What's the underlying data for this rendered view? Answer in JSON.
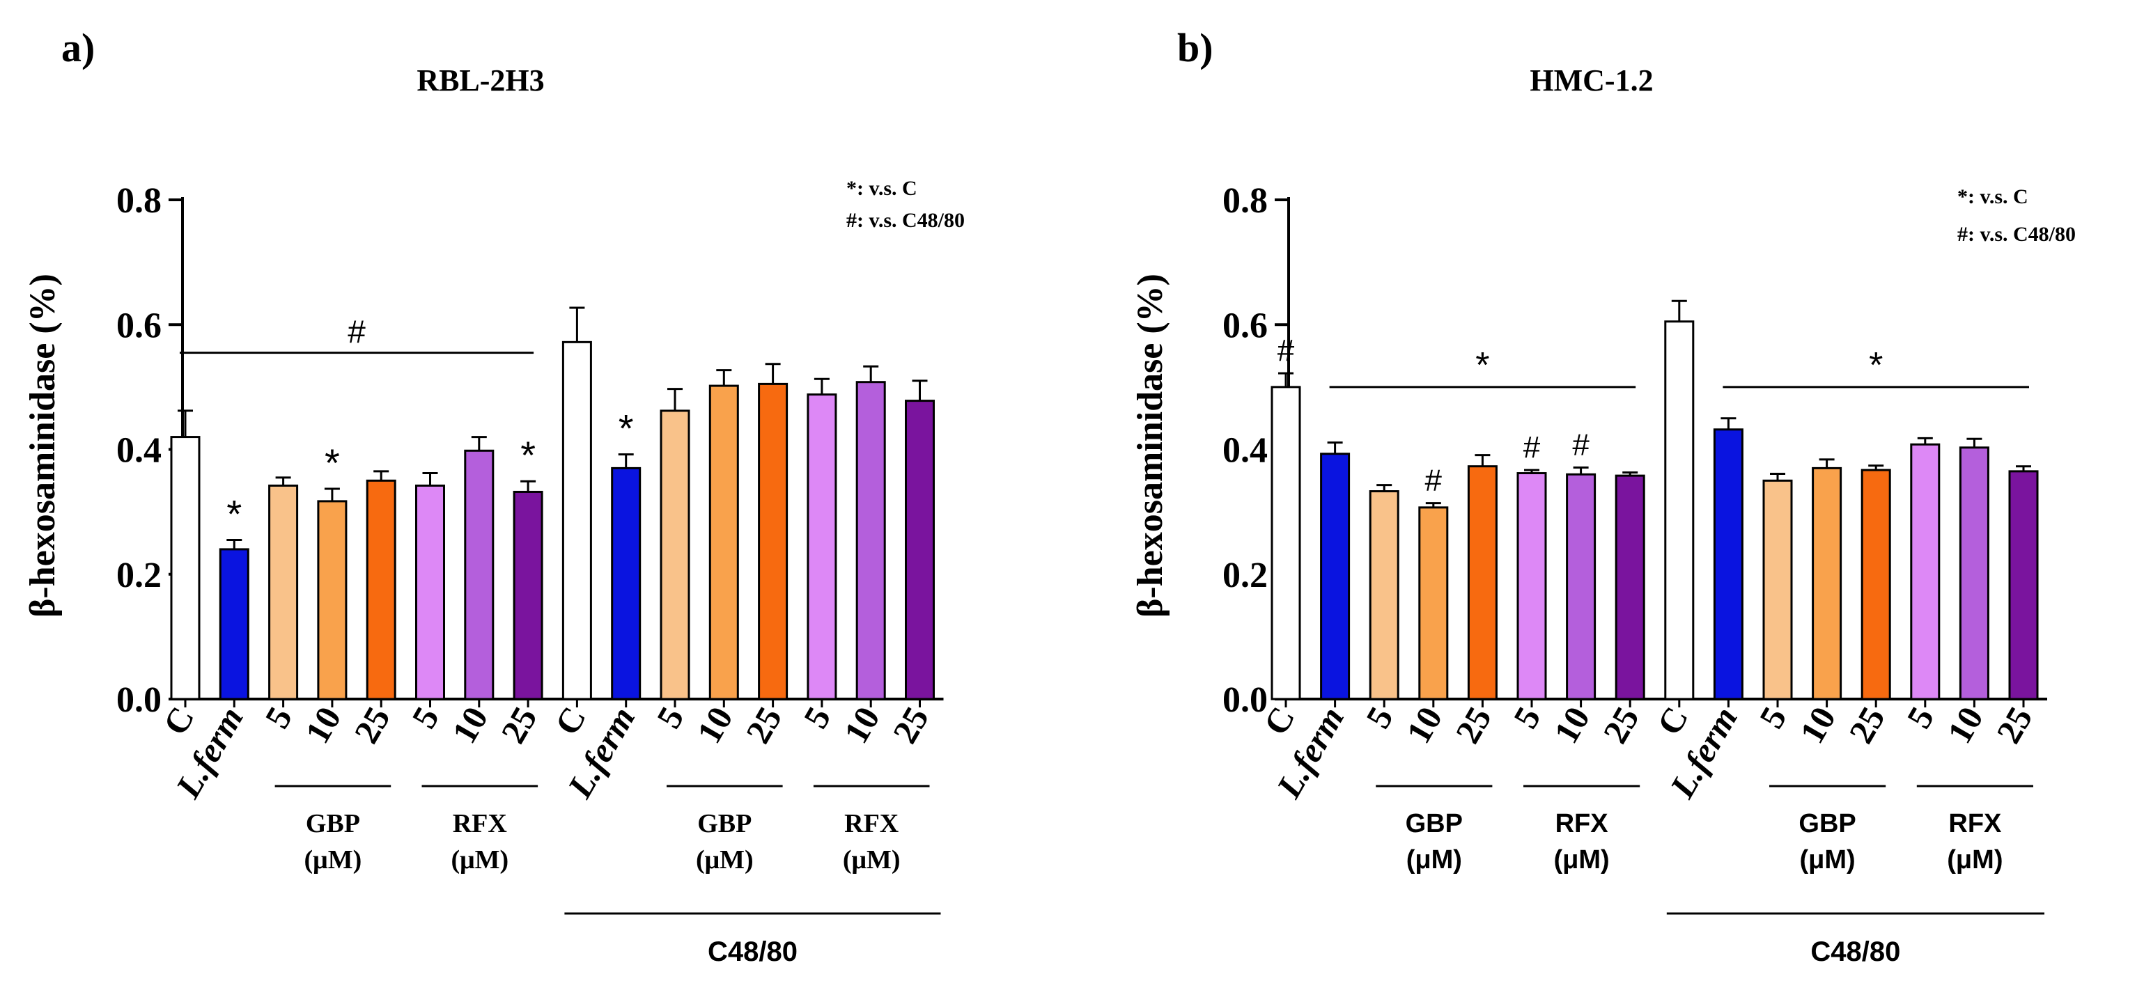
{
  "chart_data": [
    {
      "type": "bar",
      "panel_label": "a)",
      "title": "RBL-2H3",
      "ylabel": "β-hexosaminidase (%)",
      "ylim": [
        0,
        0.8
      ],
      "yticks": [
        "0.0",
        "0.2",
        "0.4",
        "0.6",
        "0.8"
      ],
      "legend": [
        "*: v.s. C",
        "#: v.s. C48/80"
      ],
      "categories": [
        "C",
        "L.ferm",
        "5",
        "10",
        "25",
        "5",
        "10",
        "25",
        "C",
        "L.ferm",
        "5",
        "10",
        "25",
        "5",
        "10",
        "25"
      ],
      "values": [
        0.42,
        0.24,
        0.342,
        0.317,
        0.35,
        0.342,
        0.398,
        0.332,
        0.572,
        0.37,
        0.462,
        0.502,
        0.505,
        0.488,
        0.508,
        0.478
      ],
      "errors": [
        0.042,
        0.015,
        0.013,
        0.02,
        0.015,
        0.02,
        0.022,
        0.017,
        0.055,
        0.022,
        0.035,
        0.025,
        0.032,
        0.025,
        0.025,
        0.032
      ],
      "colors": [
        "#ffffff",
        "#0a14e0",
        "#f9c28a",
        "#f9a24c",
        "#f76a10",
        "#dd88f6",
        "#b45fdc",
        "#7a149e",
        "#ffffff",
        "#0a14e0",
        "#f9c28a",
        "#f9a24c",
        "#f76a10",
        "#dd88f6",
        "#b45fdc",
        "#7a149e"
      ],
      "markers": [
        {
          "bar": 1,
          "text": "*"
        },
        {
          "bar": 3,
          "text": "*"
        },
        {
          "bar": 7,
          "text": "*"
        },
        {
          "bar": 9,
          "text": "*"
        }
      ],
      "span_annotations": [
        {
          "from": 0,
          "to": 7,
          "value": 0.555,
          "text": "#"
        }
      ],
      "group_labels": [
        {
          "from": 2,
          "to": 4,
          "lines": [
            "GBP",
            "(μM)"
          ]
        },
        {
          "from": 5,
          "to": 7,
          "lines": [
            "RFX",
            "(μM)"
          ]
        },
        {
          "from": 10,
          "to": 12,
          "lines": [
            "GBP",
            "(μM)"
          ]
        },
        {
          "from": 13,
          "to": 15,
          "lines": [
            "RFX",
            "(μM)"
          ]
        }
      ],
      "treatment_label": {
        "from": 8,
        "to": 15,
        "text": "C48/80"
      }
    },
    {
      "type": "bar",
      "panel_label": "b)",
      "title": "HMC-1.2",
      "ylabel": "β-hexosaminidase (%)",
      "ylim": [
        0,
        0.8
      ],
      "yticks": [
        "0.0",
        "0.2",
        "0.4",
        "0.6",
        "0.8"
      ],
      "legend": [
        "*: v.s. C",
        "#: v.s. C48/80"
      ],
      "categories": [
        "C",
        "L.ferm",
        "5",
        "10",
        "25",
        "5",
        "10",
        "25",
        "C",
        "L.ferm",
        "5",
        "10",
        "25",
        "5",
        "10",
        "25"
      ],
      "values": [
        0.5,
        0.393,
        0.333,
        0.307,
        0.373,
        0.362,
        0.36,
        0.358,
        0.605,
        0.432,
        0.35,
        0.37,
        0.367,
        0.408,
        0.403,
        0.365
      ],
      "errors": [
        0.022,
        0.018,
        0.01,
        0.007,
        0.018,
        0.005,
        0.011,
        0.005,
        0.033,
        0.018,
        0.011,
        0.014,
        0.007,
        0.01,
        0.014,
        0.008
      ],
      "colors": [
        "#ffffff",
        "#0a14e0",
        "#f9c28a",
        "#f9a24c",
        "#f76a10",
        "#dd88f6",
        "#b45fdc",
        "#7a149e",
        "#ffffff",
        "#0a14e0",
        "#f9c28a",
        "#f9a24c",
        "#f76a10",
        "#dd88f6",
        "#b45fdc",
        "#7a149e"
      ],
      "markers": [
        {
          "bar": 0,
          "text": "#"
        },
        {
          "bar": 3,
          "text": "#"
        },
        {
          "bar": 5,
          "text": "#"
        },
        {
          "bar": 6,
          "text": "#"
        }
      ],
      "span_annotations": [
        {
          "from": 1,
          "to": 7,
          "value": 0.5,
          "text": "*"
        },
        {
          "from": 9,
          "to": 15,
          "value": 0.5,
          "text": "*"
        }
      ],
      "group_labels": [
        {
          "from": 2,
          "to": 4,
          "lines": [
            "GBP",
            "(μM)"
          ]
        },
        {
          "from": 5,
          "to": 7,
          "lines": [
            "RFX",
            "(μM)"
          ]
        },
        {
          "from": 10,
          "to": 12,
          "lines": [
            "GBP",
            "(μM)"
          ]
        },
        {
          "from": 13,
          "to": 15,
          "lines": [
            "RFX",
            "(μM)"
          ]
        }
      ],
      "treatment_label": {
        "from": 8,
        "to": 15,
        "text": "C48/80"
      }
    }
  ]
}
